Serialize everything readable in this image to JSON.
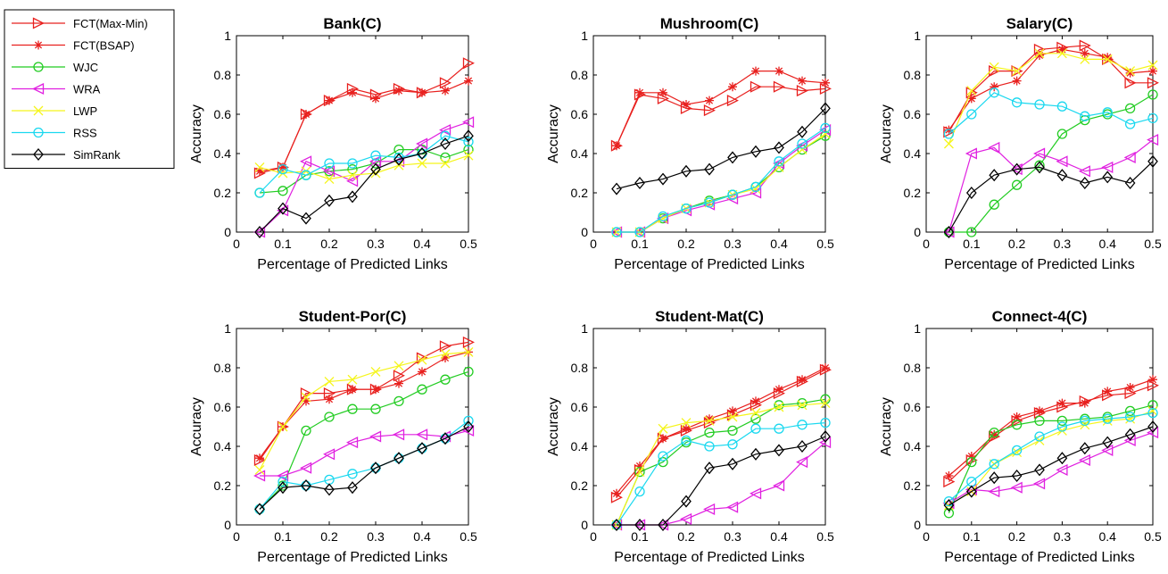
{
  "legend": {
    "entries": [
      "FCT(Max-Min)",
      "FCT(BSAP)",
      "WJC",
      "WRA",
      "LWP",
      "RSS",
      "SimRank"
    ]
  },
  "series_style": [
    {
      "color": "#e8201e",
      "marker": "triangle-right"
    },
    {
      "color": "#e8201e",
      "marker": "asterisk"
    },
    {
      "color": "#22cc22",
      "marker": "circle"
    },
    {
      "color": "#e020e0",
      "marker": "triangle-left"
    },
    {
      "color": "#f5f51a",
      "marker": "x"
    },
    {
      "color": "#1ad8ef",
      "marker": "circle"
    },
    {
      "color": "#000000",
      "marker": "diamond"
    }
  ],
  "chart_data": [
    {
      "type": "line",
      "title": "Bank(C)",
      "xlabel": "Percentage of Predicted Links",
      "ylabel": "Accuracy",
      "xlim": [
        0,
        0.5
      ],
      "ylim": [
        0,
        1
      ],
      "xticks": [
        "0",
        "0.1",
        "0.2",
        "0.3",
        "0.4",
        "0.5"
      ],
      "yticks": [
        "0",
        "0.2",
        "0.4",
        "0.6",
        "0.8",
        "1"
      ],
      "x": [
        0.05,
        0.1,
        0.15,
        0.2,
        0.25,
        0.3,
        0.35,
        0.4,
        0.45,
        0.5
      ],
      "series": [
        {
          "name": "FCT(Max-Min)",
          "values": [
            0.3,
            0.33,
            0.6,
            0.67,
            0.73,
            0.7,
            0.73,
            0.71,
            0.76,
            0.86
          ]
        },
        {
          "name": "FCT(BSAP)",
          "values": [
            0.31,
            0.33,
            0.6,
            0.67,
            0.71,
            0.68,
            0.72,
            0.71,
            0.72,
            0.77
          ]
        },
        {
          "name": "WJC",
          "values": [
            0.2,
            0.21,
            0.29,
            0.31,
            0.32,
            0.35,
            0.42,
            0.42,
            0.38,
            0.42
          ]
        },
        {
          "name": "WRA",
          "values": [
            0.0,
            0.11,
            0.36,
            0.31,
            0.26,
            0.36,
            0.36,
            0.45,
            0.52,
            0.56
          ]
        },
        {
          "name": "LWP",
          "values": [
            0.33,
            0.3,
            0.31,
            0.27,
            0.29,
            0.3,
            0.34,
            0.35,
            0.35,
            0.39
          ]
        },
        {
          "name": "RSS",
          "values": [
            0.2,
            0.32,
            0.29,
            0.35,
            0.35,
            0.39,
            0.38,
            0.4,
            0.49,
            0.46
          ]
        },
        {
          "name": "SimRank",
          "values": [
            0.0,
            0.12,
            0.07,
            0.16,
            0.18,
            0.32,
            0.37,
            0.4,
            0.45,
            0.49
          ]
        }
      ]
    },
    {
      "type": "line",
      "title": "Mushroom(C)",
      "xlabel": "Percentage of Predicted Links",
      "ylabel": "Accuracy",
      "xlim": [
        0,
        0.5
      ],
      "ylim": [
        0,
        1
      ],
      "xticks": [
        "0",
        "0.1",
        "0.2",
        "0.3",
        "0.4",
        "0.5"
      ],
      "yticks": [
        "0",
        "0.2",
        "0.4",
        "0.6",
        "0.8",
        "1"
      ],
      "x": [
        0.05,
        0.1,
        0.15,
        0.2,
        0.25,
        0.3,
        0.35,
        0.4,
        0.45,
        0.5
      ],
      "series": [
        {
          "name": "FCT(Max-Min)",
          "values": [
            0.44,
            0.7,
            0.68,
            0.63,
            0.62,
            0.67,
            0.74,
            0.74,
            0.72,
            0.73
          ]
        },
        {
          "name": "FCT(BSAP)",
          "values": [
            0.44,
            0.71,
            0.71,
            0.65,
            0.67,
            0.74,
            0.82,
            0.82,
            0.77,
            0.76
          ]
        },
        {
          "name": "WJC",
          "values": [
            0.0,
            0.0,
            0.07,
            0.12,
            0.16,
            0.19,
            0.23,
            0.33,
            0.42,
            0.49
          ]
        },
        {
          "name": "WRA",
          "values": [
            0.0,
            0.0,
            0.07,
            0.11,
            0.14,
            0.17,
            0.2,
            0.35,
            0.44,
            0.52
          ]
        },
        {
          "name": "LWP",
          "values": [
            0.0,
            0.0,
            0.07,
            0.12,
            0.15,
            0.19,
            0.22,
            0.33,
            0.42,
            0.5
          ]
        },
        {
          "name": "RSS",
          "values": [
            0.0,
            0.0,
            0.08,
            0.12,
            0.15,
            0.19,
            0.23,
            0.36,
            0.45,
            0.53
          ]
        },
        {
          "name": "SimRank",
          "values": [
            0.22,
            0.25,
            0.27,
            0.31,
            0.32,
            0.38,
            0.41,
            0.43,
            0.51,
            0.63
          ]
        }
      ]
    },
    {
      "type": "line",
      "title": "Salary(C)",
      "xlabel": "Percentage of Predicted Links",
      "ylabel": "Accuracy",
      "xlim": [
        0,
        0.5
      ],
      "ylim": [
        0,
        1
      ],
      "xticks": [
        "0",
        "0.1",
        "0.2",
        "0.3",
        "0.4",
        "0.5"
      ],
      "yticks": [
        "0",
        "0.2",
        "0.4",
        "0.6",
        "0.8",
        "1"
      ],
      "x": [
        0.05,
        0.1,
        0.15,
        0.2,
        0.25,
        0.3,
        0.35,
        0.4,
        0.45,
        0.5
      ],
      "series": [
        {
          "name": "FCT(Max-Min)",
          "values": [
            0.51,
            0.71,
            0.82,
            0.82,
            0.93,
            0.94,
            0.95,
            0.88,
            0.76,
            0.76
          ]
        },
        {
          "name": "FCT(BSAP)",
          "values": [
            0.52,
            0.68,
            0.74,
            0.77,
            0.9,
            0.93,
            0.91,
            0.89,
            0.81,
            0.82
          ]
        },
        {
          "name": "WJC",
          "values": [
            0.0,
            0.0,
            0.14,
            0.24,
            0.34,
            0.5,
            0.57,
            0.6,
            0.63,
            0.7
          ]
        },
        {
          "name": "WRA",
          "values": [
            0.0,
            0.4,
            0.43,
            0.32,
            0.4,
            0.36,
            0.31,
            0.33,
            0.38,
            0.47
          ]
        },
        {
          "name": "LWP",
          "values": [
            0.45,
            0.72,
            0.84,
            0.82,
            0.91,
            0.91,
            0.88,
            0.88,
            0.82,
            0.85
          ]
        },
        {
          "name": "RSS",
          "values": [
            0.5,
            0.6,
            0.71,
            0.66,
            0.65,
            0.64,
            0.59,
            0.61,
            0.55,
            0.58
          ]
        },
        {
          "name": "SimRank",
          "values": [
            0.0,
            0.2,
            0.29,
            0.32,
            0.33,
            0.29,
            0.25,
            0.28,
            0.25,
            0.36
          ]
        }
      ]
    },
    {
      "type": "line",
      "title": "Student-Por(C)",
      "xlabel": "Percentage of Predicted Links",
      "ylabel": "Accuracy",
      "xlim": [
        0,
        0.5
      ],
      "ylim": [
        0,
        1
      ],
      "xticks": [
        "0",
        "0.1",
        "0.2",
        "0.3",
        "0.4",
        "0.5"
      ],
      "yticks": [
        "0",
        "0.2",
        "0.4",
        "0.6",
        "0.8",
        "1"
      ],
      "x": [
        0.05,
        0.1,
        0.15,
        0.2,
        0.25,
        0.3,
        0.35,
        0.4,
        0.45,
        0.5
      ],
      "series": [
        {
          "name": "FCT(Max-Min)",
          "values": [
            0.33,
            0.5,
            0.67,
            0.67,
            0.69,
            0.69,
            0.76,
            0.85,
            0.91,
            0.93
          ]
        },
        {
          "name": "FCT(BSAP)",
          "values": [
            0.34,
            0.5,
            0.63,
            0.64,
            0.69,
            0.69,
            0.72,
            0.78,
            0.85,
            0.88
          ]
        },
        {
          "name": "WJC",
          "values": [
            0.08,
            0.2,
            0.48,
            0.55,
            0.59,
            0.59,
            0.63,
            0.69,
            0.74,
            0.78
          ]
        },
        {
          "name": "WRA",
          "values": [
            0.25,
            0.25,
            0.29,
            0.36,
            0.42,
            0.45,
            0.46,
            0.46,
            0.45,
            0.48
          ]
        },
        {
          "name": "LWP",
          "values": [
            0.28,
            0.5,
            0.65,
            0.73,
            0.74,
            0.78,
            0.81,
            0.84,
            0.87,
            0.88
          ]
        },
        {
          "name": "RSS",
          "values": [
            0.08,
            0.22,
            0.2,
            0.23,
            0.26,
            0.29,
            0.34,
            0.39,
            0.44,
            0.53
          ]
        },
        {
          "name": "SimRank",
          "values": [
            0.08,
            0.19,
            0.2,
            0.18,
            0.19,
            0.29,
            0.34,
            0.39,
            0.44,
            0.5
          ]
        }
      ]
    },
    {
      "type": "line",
      "title": "Student-Mat(C)",
      "xlabel": "Percentage of Predicted Links",
      "ylabel": "Accuracy",
      "xlim": [
        0,
        0.5
      ],
      "ylim": [
        0,
        1
      ],
      "xticks": [
        "0",
        "0.1",
        "0.2",
        "0.3",
        "0.4",
        "0.5"
      ],
      "yticks": [
        "0",
        "0.2",
        "0.4",
        "0.6",
        "0.8",
        "1"
      ],
      "x": [
        0.05,
        0.1,
        0.15,
        0.2,
        0.25,
        0.3,
        0.35,
        0.4,
        0.45,
        0.5
      ],
      "series": [
        {
          "name": "FCT(Max-Min)",
          "values": [
            0.14,
            0.28,
            0.44,
            0.48,
            0.52,
            0.56,
            0.61,
            0.67,
            0.73,
            0.79
          ]
        },
        {
          "name": "FCT(BSAP)",
          "values": [
            0.16,
            0.3,
            0.44,
            0.49,
            0.54,
            0.58,
            0.63,
            0.69,
            0.74,
            0.8
          ]
        },
        {
          "name": "WJC",
          "values": [
            0.0,
            0.27,
            0.32,
            0.42,
            0.47,
            0.48,
            0.54,
            0.61,
            0.62,
            0.64
          ]
        },
        {
          "name": "WRA",
          "values": [
            0.0,
            0.0,
            0.0,
            0.03,
            0.08,
            0.09,
            0.16,
            0.2,
            0.32,
            0.42
          ]
        },
        {
          "name": "LWP",
          "values": [
            0.0,
            0.27,
            0.49,
            0.52,
            0.53,
            0.55,
            0.57,
            0.6,
            0.61,
            0.62
          ]
        },
        {
          "name": "RSS",
          "values": [
            0.0,
            0.17,
            0.35,
            0.43,
            0.4,
            0.41,
            0.49,
            0.49,
            0.51,
            0.52
          ]
        },
        {
          "name": "SimRank",
          "values": [
            0.0,
            0.0,
            0.0,
            0.12,
            0.29,
            0.31,
            0.36,
            0.38,
            0.4,
            0.45
          ]
        }
      ]
    },
    {
      "type": "line",
      "title": "Connect-4(C)",
      "xlabel": "Percentage of Predicted Links",
      "ylabel": "Accuracy",
      "xlim": [
        0,
        0.5
      ],
      "ylim": [
        0,
        1
      ],
      "xticks": [
        "0",
        "0.1",
        "0.2",
        "0.3",
        "0.4",
        "0.5"
      ],
      "yticks": [
        "0",
        "0.2",
        "0.4",
        "0.6",
        "0.8",
        "1"
      ],
      "x": [
        0.05,
        0.1,
        0.15,
        0.2,
        0.25,
        0.3,
        0.35,
        0.4,
        0.45,
        0.5
      ],
      "series": [
        {
          "name": "FCT(Max-Min)",
          "values": [
            0.22,
            0.33,
            0.45,
            0.53,
            0.57,
            0.6,
            0.63,
            0.66,
            0.67,
            0.71
          ]
        },
        {
          "name": "FCT(BSAP)",
          "values": [
            0.25,
            0.35,
            0.46,
            0.55,
            0.58,
            0.62,
            0.62,
            0.68,
            0.7,
            0.74
          ]
        },
        {
          "name": "WJC",
          "values": [
            0.06,
            0.32,
            0.47,
            0.51,
            0.53,
            0.53,
            0.54,
            0.55,
            0.58,
            0.61
          ]
        },
        {
          "name": "WRA",
          "values": [
            0.11,
            0.18,
            0.17,
            0.19,
            0.21,
            0.28,
            0.33,
            0.38,
            0.43,
            0.47
          ]
        },
        {
          "name": "LWP",
          "values": [
            0.1,
            0.17,
            0.31,
            0.37,
            0.43,
            0.48,
            0.51,
            0.53,
            0.54,
            0.58
          ]
        },
        {
          "name": "RSS",
          "values": [
            0.12,
            0.22,
            0.31,
            0.38,
            0.45,
            0.5,
            0.53,
            0.54,
            0.55,
            0.57
          ]
        },
        {
          "name": "SimRank",
          "values": [
            0.1,
            0.17,
            0.24,
            0.25,
            0.28,
            0.34,
            0.39,
            0.42,
            0.46,
            0.5
          ]
        }
      ]
    }
  ]
}
